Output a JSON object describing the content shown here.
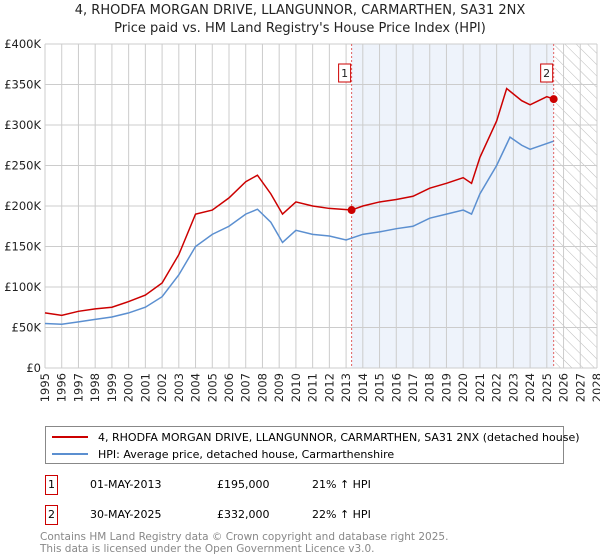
{
  "chart_data": {
    "type": "line",
    "title": "4, RHODFA MORGAN DRIVE, LLANGUNNOR, CARMARTHEN, SA31 2NX",
    "subtitle": "Price paid vs. HM Land Registry's House Price Index (HPI)",
    "xlim": [
      1995,
      2028
    ],
    "ylim": [
      0,
      400000
    ],
    "x_ticks": [
      "1995",
      "1996",
      "1997",
      "1998",
      "1999",
      "2000",
      "2001",
      "2002",
      "2003",
      "2004",
      "2005",
      "2006",
      "2007",
      "2008",
      "2009",
      "2010",
      "2011",
      "2012",
      "2013",
      "2014",
      "2015",
      "2016",
      "2017",
      "2018",
      "2019",
      "2020",
      "2021",
      "2022",
      "2023",
      "2024",
      "2025",
      "2026",
      "2027",
      "2028"
    ],
    "y_ticks": [
      {
        "v": 0,
        "label": "£0"
      },
      {
        "v": 50000,
        "label": "£50K"
      },
      {
        "v": 100000,
        "label": "£100K"
      },
      {
        "v": 150000,
        "label": "£150K"
      },
      {
        "v": 200000,
        "label": "£200K"
      },
      {
        "v": 250000,
        "label": "£250K"
      },
      {
        "v": 300000,
        "label": "£300K"
      },
      {
        "v": 350000,
        "label": "£350K"
      },
      {
        "v": 400000,
        "label": "£400K"
      }
    ],
    "series": [
      {
        "name": "4, RHODFA MORGAN DRIVE, LLANGUNNOR, CARMARTHEN, SA31 2NX (detached house)",
        "color": "#cc0000",
        "x": [
          1995,
          1996,
          1997,
          1998,
          1999,
          2000,
          2001,
          2002,
          2003,
          2004,
          2005,
          2006,
          2007,
          2007.7,
          2008.5,
          2009.2,
          2010,
          2011,
          2012,
          2013.33,
          2014,
          2015,
          2016,
          2017,
          2018,
          2019,
          2020,
          2020.5,
          2021,
          2022,
          2022.6,
          2023.5,
          2024,
          2025,
          2025.41
        ],
        "y": [
          68000,
          65000,
          70000,
          73000,
          75000,
          82000,
          90000,
          105000,
          140000,
          190000,
          195000,
          210000,
          230000,
          238000,
          215000,
          190000,
          205000,
          200000,
          197000,
          195000,
          200000,
          205000,
          208000,
          212000,
          222000,
          228000,
          235000,
          228000,
          260000,
          305000,
          345000,
          330000,
          325000,
          335000,
          332000
        ]
      },
      {
        "name": "HPI: Average price, detached house, Carmarthenshire",
        "color": "#5b8fd0",
        "x": [
          1995,
          1996,
          1997,
          1998,
          1999,
          2000,
          2001,
          2002,
          2003,
          2004,
          2005,
          2006,
          2007,
          2007.7,
          2008.5,
          2009.2,
          2010,
          2011,
          2012,
          2013,
          2014,
          2015,
          2016,
          2017,
          2018,
          2019,
          2020,
          2020.5,
          2021,
          2022,
          2022.8,
          2023.5,
          2024,
          2025.4
        ],
        "y": [
          55000,
          54000,
          57000,
          60000,
          63000,
          68000,
          75000,
          88000,
          115000,
          150000,
          165000,
          175000,
          190000,
          196000,
          180000,
          155000,
          170000,
          165000,
          163000,
          158000,
          165000,
          168000,
          172000,
          175000,
          185000,
          190000,
          195000,
          190000,
          215000,
          250000,
          285000,
          275000,
          270000,
          280000
        ]
      }
    ],
    "sales": [
      {
        "label": "1",
        "x": 2013.33,
        "y": 195000,
        "date": "01-MAY-2013",
        "price": "£195,000",
        "hpi": "21% ↑ HPI"
      },
      {
        "label": "2",
        "x": 2025.41,
        "y": 332000,
        "date": "30-MAY-2025",
        "price": "£332,000",
        "hpi": "22% ↑ HPI"
      }
    ],
    "forecast_from": 2025.5
  },
  "footer": {
    "line1": "Contains HM Land Registry data © Crown copyright and database right 2025.",
    "line2": "This data is licensed under the Open Government Licence v3.0."
  }
}
